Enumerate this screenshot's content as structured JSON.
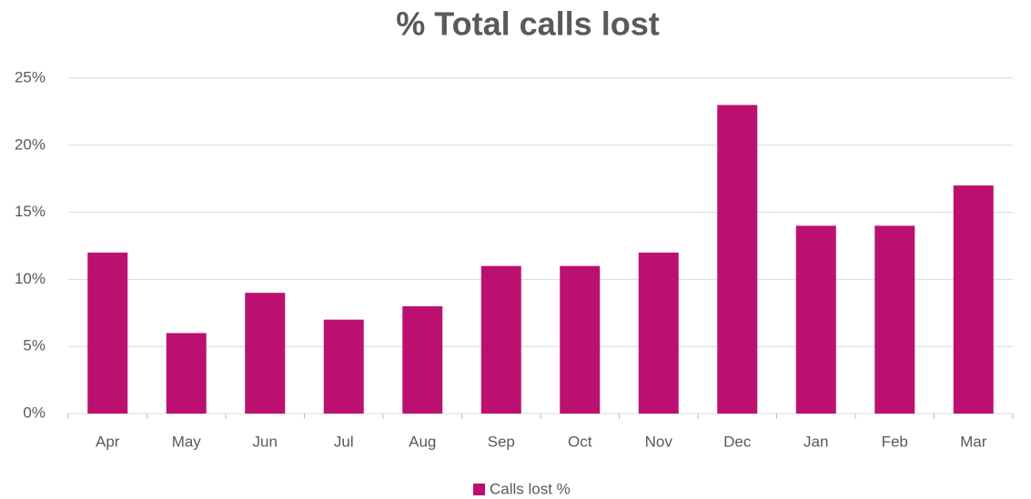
{
  "chart_data": {
    "type": "bar",
    "title": "% Total calls lost",
    "categories": [
      "Apr",
      "May",
      "Jun",
      "Jul",
      "Aug",
      "Sep",
      "Oct",
      "Nov",
      "Dec",
      "Jan",
      "Feb",
      "Mar"
    ],
    "series": [
      {
        "name": "Calls lost %",
        "color": "#bc1070",
        "values": [
          12,
          6,
          9,
          7,
          8,
          11,
          11,
          12,
          23,
          14,
          14,
          17
        ]
      }
    ],
    "ylim": [
      0,
      25
    ],
    "yticks": [
      {
        "value": 0,
        "label": "0%"
      },
      {
        "value": 5,
        "label": "5%"
      },
      {
        "value": 10,
        "label": "10%"
      },
      {
        "value": 15,
        "label": "15%"
      },
      {
        "value": 20,
        "label": "20%"
      },
      {
        "value": 25,
        "label": "25%"
      }
    ],
    "grid": true,
    "legend": "bottom"
  }
}
